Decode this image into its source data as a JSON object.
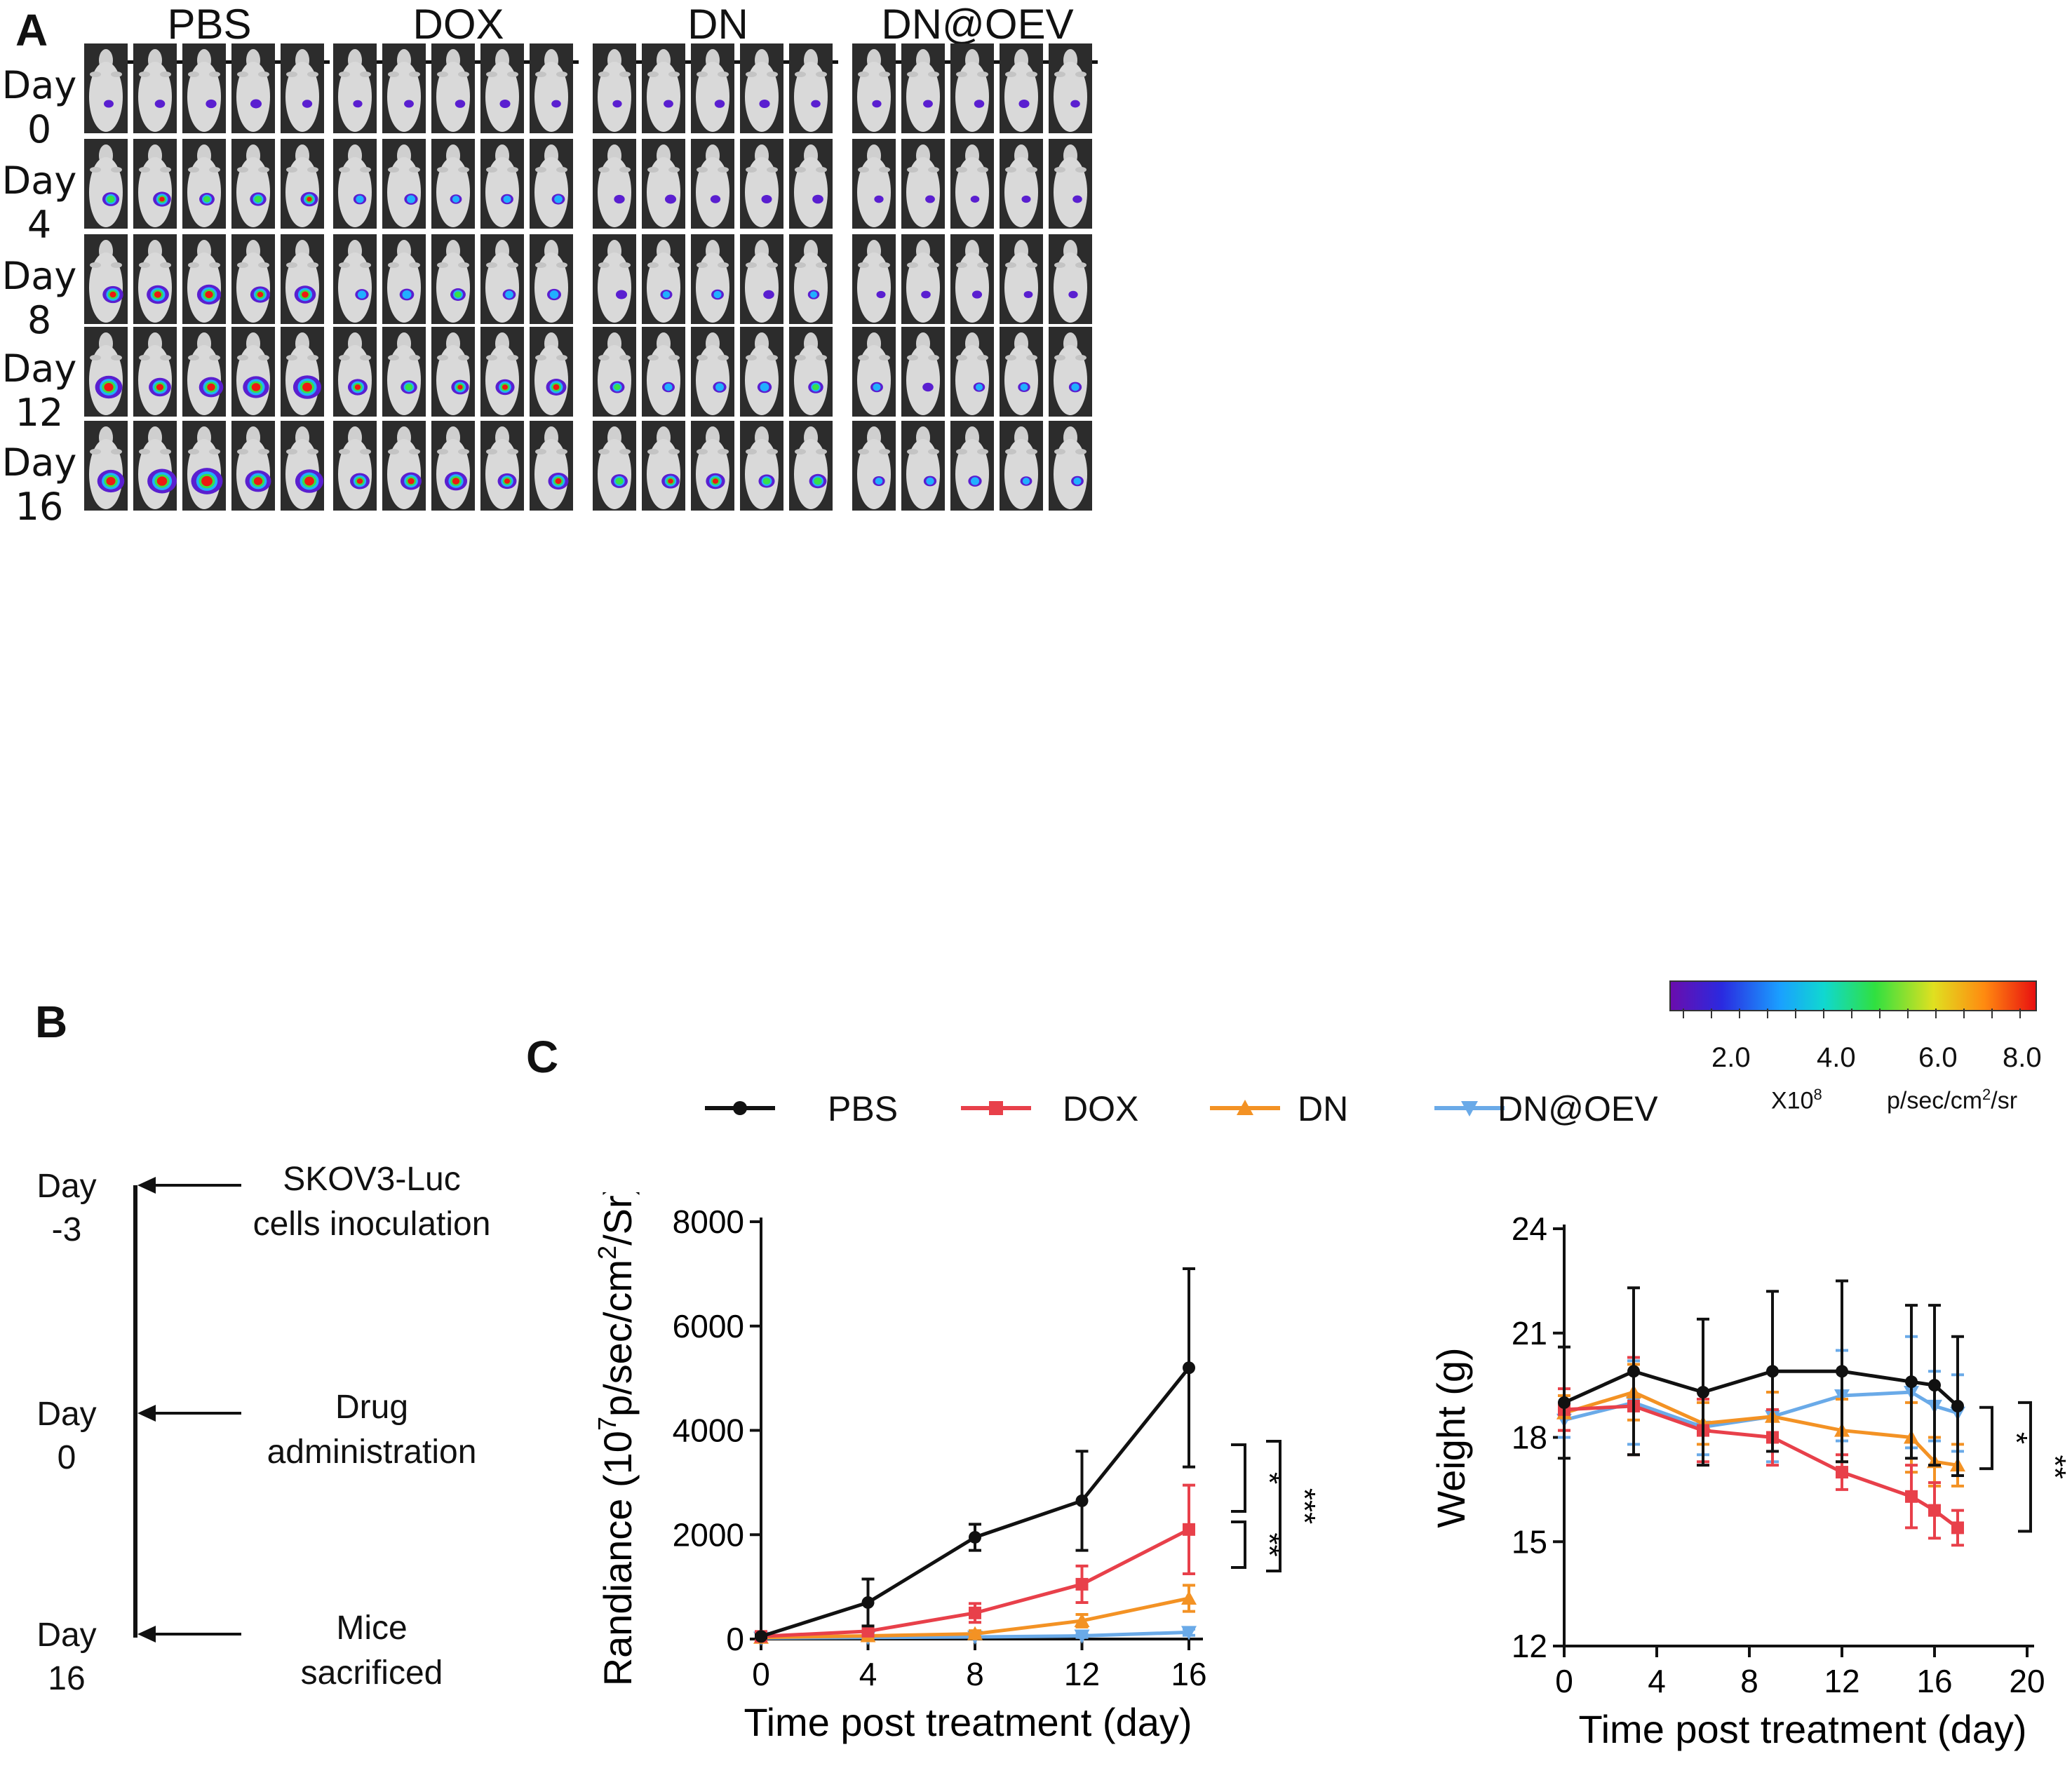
{
  "figure": {
    "panel_a": {
      "letter": "A",
      "groups": [
        "PBS",
        "DOX",
        "DN",
        "DN@OEV"
      ],
      "days": [
        "Day 0",
        "Day 4",
        "Day 8",
        "Day 12",
        "Day 16"
      ],
      "colorbar": {
        "ticks": [
          "2.0",
          "4.0",
          "6.0",
          "8.0"
        ],
        "multiplier": "X10",
        "multiplier_exp": "8",
        "units_pre": "p/sec/cm",
        "units_exp": "2",
        "units_post": "/sr"
      }
    },
    "panel_b": {
      "letter": "B",
      "events": [
        {
          "day": "Day",
          "day_num": "-3",
          "line1": "SKOV3-Luc",
          "line2": "cells inoculation"
        },
        {
          "day": "Day",
          "day_num": "0",
          "line1": "Drug",
          "line2": "administration"
        },
        {
          "day": "Day",
          "day_num": "16",
          "line1": "Mice",
          "line2": "sacrificed"
        }
      ]
    },
    "panel_c": {
      "letter": "C",
      "legend": [
        "PBS",
        "DOX",
        "DN",
        "DN@OEV"
      ]
    },
    "colors": {
      "PBS": "#111111",
      "DOX": "#e8404a",
      "DN": "#f39224",
      "DN@OEV": "#6aaae8"
    }
  },
  "chart_data": [
    {
      "type": "line",
      "title": "",
      "xlabel": "Time post treatment (day)",
      "ylabel_pre": "Randiance (10",
      "ylabel_exp1": "7",
      "ylabel_mid": "p/sec/cm",
      "ylabel_exp2": "2",
      "ylabel_post": "/Sr)",
      "x": [
        0,
        4,
        8,
        12,
        16
      ],
      "xlim": [
        0,
        16
      ],
      "ylim": [
        0,
        8000
      ],
      "xticks": [
        0,
        4,
        8,
        12,
        16
      ],
      "yticks": [
        0,
        2000,
        4000,
        6000,
        8000
      ],
      "series": [
        {
          "name": "PBS",
          "values": [
            50,
            700,
            1950,
            2650,
            5200
          ],
          "errors": [
            30,
            450,
            250,
            950,
            1900
          ]
        },
        {
          "name": "DOX",
          "values": [
            50,
            150,
            500,
            1050,
            2100
          ],
          "errors": [
            20,
            80,
            180,
            350,
            850
          ]
        },
        {
          "name": "DN",
          "values": [
            30,
            60,
            100,
            350,
            780
          ],
          "errors": [
            20,
            40,
            60,
            120,
            250
          ]
        },
        {
          "name": "DN@OEV",
          "values": [
            20,
            30,
            40,
            60,
            130
          ],
          "errors": [
            10,
            15,
            20,
            30,
            60
          ]
        }
      ],
      "significance": [
        {
          "label": "*",
          "from": "PBS",
          "to": "DOX"
        },
        {
          "label": "**",
          "from": "DOX",
          "to": "DN@OEV"
        },
        {
          "label": "***",
          "from": "PBS",
          "to": "DN@OEV"
        }
      ]
    },
    {
      "type": "line",
      "title": "",
      "xlabel": "Time post treatment (day)",
      "ylabel": "Weight (g)",
      "x": [
        0,
        3,
        6,
        9,
        12,
        15,
        16,
        17
      ],
      "xlim": [
        0,
        20
      ],
      "ylim": [
        12,
        24
      ],
      "xticks": [
        0,
        4,
        8,
        12,
        16,
        20
      ],
      "yticks": [
        12,
        15,
        18,
        21,
        24
      ],
      "series": [
        {
          "name": "PBS",
          "values": [
            19.0,
            19.9,
            19.3,
            19.9,
            19.9,
            19.6,
            19.5,
            18.9
          ],
          "errors": [
            1.6,
            2.4,
            2.1,
            2.3,
            2.6,
            2.2,
            2.3,
            2.0
          ]
        },
        {
          "name": "DOX",
          "values": [
            18.8,
            18.9,
            18.2,
            18.0,
            17.0,
            16.3,
            15.9,
            15.4
          ],
          "errors": [
            0.6,
            1.4,
            0.9,
            0.8,
            0.5,
            0.9,
            0.8,
            0.5
          ]
        },
        {
          "name": "DN",
          "values": [
            18.7,
            19.3,
            18.4,
            18.6,
            18.2,
            18.0,
            17.3,
            17.2
          ],
          "errors": [
            0.5,
            0.8,
            0.6,
            0.7,
            0.9,
            1.0,
            0.7,
            0.6
          ]
        },
        {
          "name": "DN@OEV",
          "values": [
            18.5,
            19.0,
            18.3,
            18.6,
            19.2,
            19.3,
            18.9,
            18.7
          ],
          "errors": [
            0.5,
            1.2,
            0.8,
            1.3,
            1.3,
            1.6,
            1.0,
            1.1
          ]
        }
      ],
      "significance": [
        {
          "label": "*",
          "from": "DN@OEV",
          "to": "DN"
        },
        {
          "label": "**",
          "from": "DN@OEV",
          "to": "DOX"
        }
      ]
    }
  ]
}
